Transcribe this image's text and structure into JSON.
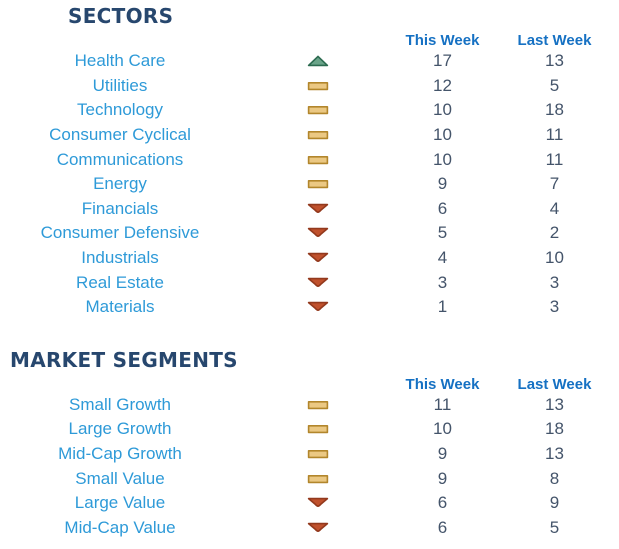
{
  "colors": {
    "section_title": "#27476E",
    "column_header": "#1671C3",
    "row_label": "#2E9AD8",
    "value": "#44546A",
    "up_fill": "#6AA489",
    "up_stroke": "#2C6B50",
    "flat_fill": "#EBC883",
    "flat_stroke": "#B2862C",
    "down_fill": "#C0512D",
    "down_stroke": "#93391D"
  },
  "icons": {
    "up": "up-trend-icon",
    "flat": "flat-trend-icon",
    "down": "down-trend-icon"
  },
  "chart_data": [
    {
      "type": "table",
      "title": "SECTORS",
      "column_headers": [
        "This Week",
        "Last Week"
      ],
      "rows": [
        {
          "label": "Health Care",
          "trend": "up",
          "this_week": "17",
          "last_week": "13"
        },
        {
          "label": "Utilities",
          "trend": "flat",
          "this_week": "12",
          "last_week": "5"
        },
        {
          "label": "Technology",
          "trend": "flat",
          "this_week": "10",
          "last_week": "18"
        },
        {
          "label": "Consumer Cyclical",
          "trend": "flat",
          "this_week": "10",
          "last_week": "11"
        },
        {
          "label": "Communications",
          "trend": "flat",
          "this_week": "10",
          "last_week": "11"
        },
        {
          "label": "Energy",
          "trend": "flat",
          "this_week": "9",
          "last_week": "7"
        },
        {
          "label": "Financials",
          "trend": "down",
          "this_week": "6",
          "last_week": "4"
        },
        {
          "label": "Consumer Defensive",
          "trend": "down",
          "this_week": "5",
          "last_week": "2"
        },
        {
          "label": "Industrials",
          "trend": "down",
          "this_week": "4",
          "last_week": "10"
        },
        {
          "label": "Real Estate",
          "trend": "down",
          "this_week": "3",
          "last_week": "3"
        },
        {
          "label": "Materials",
          "trend": "down",
          "this_week": "1",
          "last_week": "3"
        }
      ]
    },
    {
      "type": "table",
      "title": "MARKET SEGMENTS",
      "column_headers": [
        "This Week",
        "Last Week"
      ],
      "rows": [
        {
          "label": "Small Growth",
          "trend": "flat",
          "this_week": "11",
          "last_week": "13"
        },
        {
          "label": "Large Growth",
          "trend": "flat",
          "this_week": "10",
          "last_week": "18"
        },
        {
          "label": "Mid-Cap Growth",
          "trend": "flat",
          "this_week": "9",
          "last_week": "13"
        },
        {
          "label": "Small Value",
          "trend": "flat",
          "this_week": "9",
          "last_week": "8"
        },
        {
          "label": "Large Value",
          "trend": "down",
          "this_week": "6",
          "last_week": "9"
        },
        {
          "label": "Mid-Cap Value",
          "trend": "down",
          "this_week": "6",
          "last_week": "5"
        }
      ]
    }
  ]
}
